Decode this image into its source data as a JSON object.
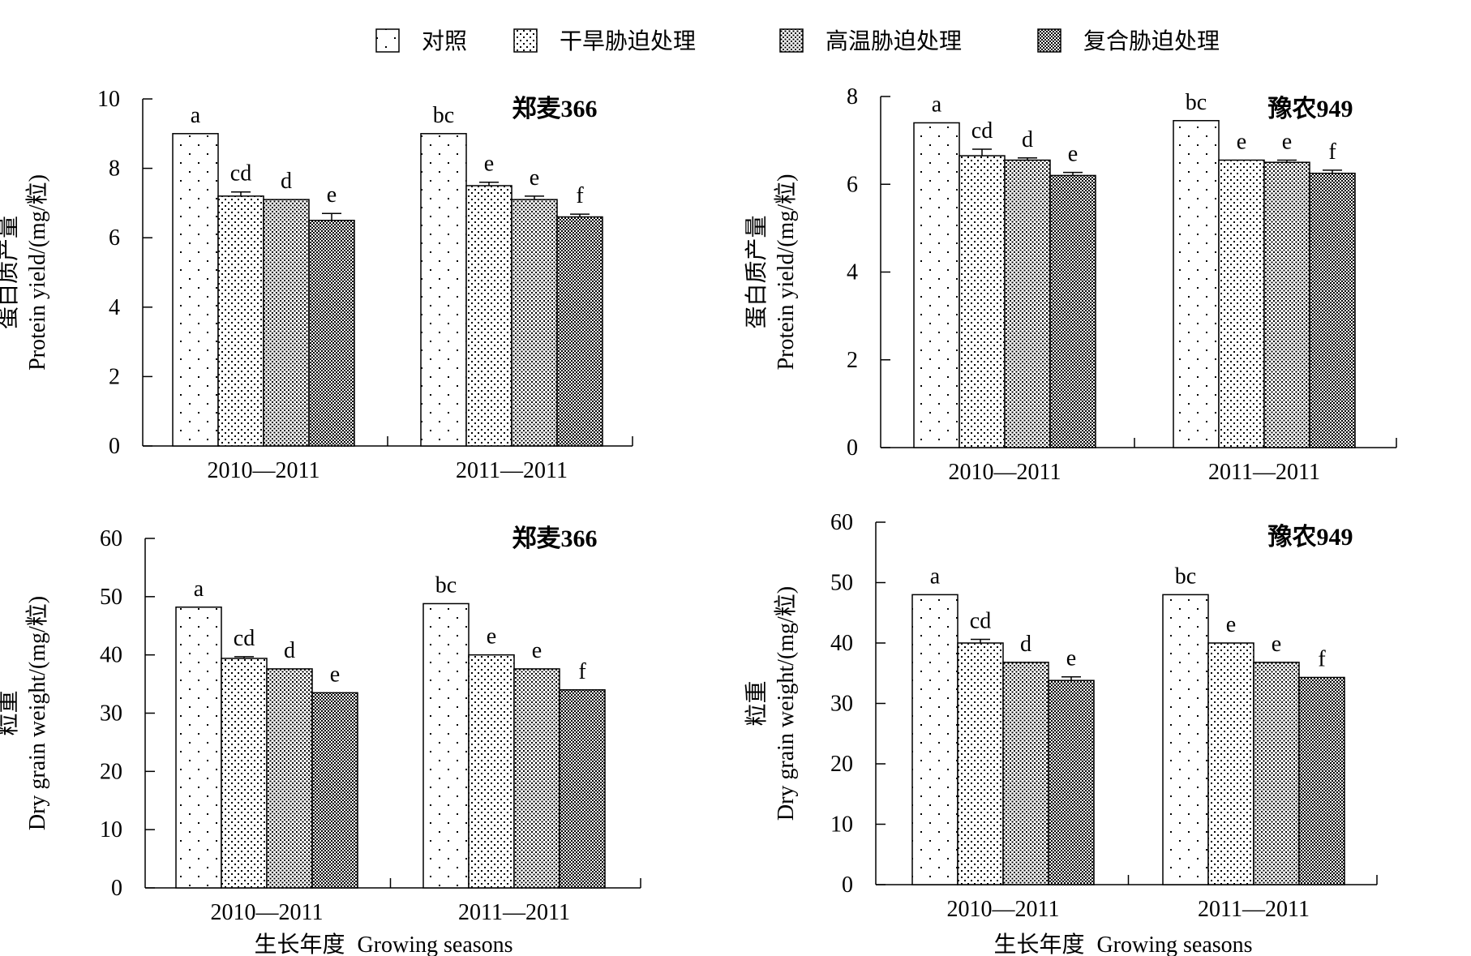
{
  "legend": {
    "items": [
      {
        "label": "对照",
        "pattern": "p0"
      },
      {
        "label": "干旱胁迫处理",
        "pattern": "p1"
      },
      {
        "label": "高温胁迫处理",
        "pattern": "p2"
      },
      {
        "label": "复合胁迫处理",
        "pattern": "p3"
      }
    ]
  },
  "shared_xlabel": {
    "cn": "生长年度",
    "en": "Growing seasons"
  },
  "chart_data": [
    {
      "type": "bar",
      "title": "郑麦366",
      "ylabel_cn": "蛋白质产量",
      "ylabel_en": "Protein yield/(mg/粒)",
      "ylim": [
        0,
        10
      ],
      "yticks": [
        0,
        2,
        4,
        6,
        8,
        10
      ],
      "categories": [
        "2010—2011",
        "2011—2011"
      ],
      "series": [
        {
          "name": "对照",
          "values": [
            9.0,
            9.0
          ],
          "errors": [
            0,
            0
          ],
          "labels": [
            "a",
            "bc"
          ]
        },
        {
          "name": "干旱胁迫处理",
          "values": [
            7.2,
            7.5
          ],
          "errors": [
            0.12,
            0.1
          ],
          "labels": [
            "cd",
            "e"
          ]
        },
        {
          "name": "高温胁迫处理",
          "values": [
            7.1,
            7.1
          ],
          "errors": [
            0,
            0.1
          ],
          "labels": [
            "d",
            "e"
          ]
        },
        {
          "name": "复合胁迫处理",
          "values": [
            6.5,
            6.6
          ],
          "errors": [
            0.2,
            0.08
          ],
          "labels": [
            "e",
            "f"
          ]
        }
      ]
    },
    {
      "type": "bar",
      "title": "豫农949",
      "ylabel_cn": "蛋白质产量",
      "ylabel_en": "Protein yield/(mg/粒)",
      "ylim": [
        0,
        8
      ],
      "yticks": [
        0,
        2,
        4,
        6,
        8
      ],
      "categories": [
        "2010—2011",
        "2011—2011"
      ],
      "series": [
        {
          "name": "对照",
          "values": [
            7.4,
            7.45
          ],
          "errors": [
            0,
            0
          ],
          "labels": [
            "a",
            "bc"
          ]
        },
        {
          "name": "干旱胁迫处理",
          "values": [
            6.65,
            6.55
          ],
          "errors": [
            0.15,
            0
          ],
          "labels": [
            "cd",
            "e"
          ]
        },
        {
          "name": "高温胁迫处理",
          "values": [
            6.55,
            6.5
          ],
          "errors": [
            0.05,
            0.05
          ],
          "labels": [
            "d",
            "e"
          ]
        },
        {
          "name": "复合胁迫处理",
          "values": [
            6.2,
            6.25
          ],
          "errors": [
            0.07,
            0.07
          ],
          "labels": [
            "e",
            "f"
          ]
        }
      ]
    },
    {
      "type": "bar",
      "title": "郑麦366",
      "ylabel_cn": "粒重",
      "ylabel_en": "Dry grain weight/(mg/粒)",
      "ylim": [
        0,
        60
      ],
      "yticks": [
        0,
        10,
        20,
        30,
        40,
        50,
        60
      ],
      "categories": [
        "2010—2011",
        "2011—2011"
      ],
      "series": [
        {
          "name": "对照",
          "values": [
            48.2,
            48.8
          ],
          "errors": [
            0,
            0
          ],
          "labels": [
            "a",
            "bc"
          ]
        },
        {
          "name": "干旱胁迫处理",
          "values": [
            39.4,
            40.0
          ],
          "errors": [
            0.3,
            0
          ],
          "labels": [
            "cd",
            "e"
          ]
        },
        {
          "name": "高温胁迫处理",
          "values": [
            37.6,
            37.6
          ],
          "errors": [
            0,
            0
          ],
          "labels": [
            "d",
            "e"
          ]
        },
        {
          "name": "复合胁迫处理",
          "values": [
            33.5,
            34.0
          ],
          "errors": [
            0,
            0
          ],
          "labels": [
            "e",
            "f"
          ]
        }
      ]
    },
    {
      "type": "bar",
      "title": "豫农949",
      "ylabel_cn": "粒重",
      "ylabel_en": "Dry grain weight/(mg/粒)",
      "ylim": [
        0,
        60
      ],
      "yticks": [
        0,
        10,
        20,
        30,
        40,
        50,
        60
      ],
      "categories": [
        "2010—2011",
        "2011—2011"
      ],
      "series": [
        {
          "name": "对照",
          "values": [
            48.0,
            48.0
          ],
          "errors": [
            0,
            0
          ],
          "labels": [
            "a",
            "bc"
          ]
        },
        {
          "name": "干旱胁迫处理",
          "values": [
            40.0,
            40.0
          ],
          "errors": [
            0.6,
            0
          ],
          "labels": [
            "cd",
            "e"
          ]
        },
        {
          "name": "高温胁迫处理",
          "values": [
            36.8,
            36.8
          ],
          "errors": [
            0,
            0
          ],
          "labels": [
            "d",
            "e"
          ]
        },
        {
          "name": "复合胁迫处理",
          "values": [
            33.8,
            34.3
          ],
          "errors": [
            0.6,
            0
          ],
          "labels": [
            "e",
            "f"
          ]
        }
      ]
    }
  ]
}
